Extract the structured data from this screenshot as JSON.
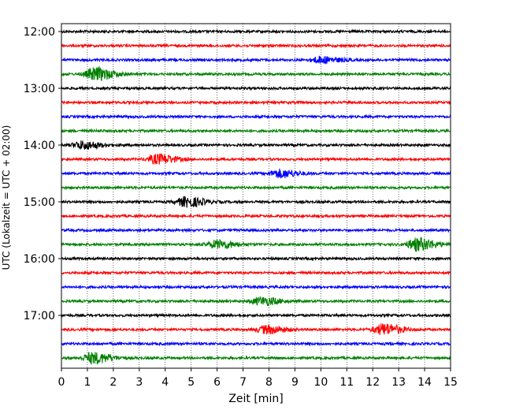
{
  "chart_data": {
    "type": "line",
    "title": "",
    "xlabel": "Zeit  [min]",
    "ylabel": "UTC (Lokalzeit = UTC + 02:00)",
    "xlim": [
      0,
      15
    ],
    "x_ticks": [
      "0",
      "1",
      "2",
      "3",
      "4",
      "5",
      "6",
      "7",
      "8",
      "9",
      "10",
      "11",
      "12",
      "13",
      "14",
      "15"
    ],
    "y_ticks": [
      "12:00",
      "13:00",
      "14:00",
      "15:00",
      "16:00",
      "17:00"
    ],
    "grid": "vertical dotted lines at each minute",
    "trace_interval_min": 15,
    "line_colors_cycle": [
      "#000000",
      "#ff0000",
      "#0000ff",
      "#008000"
    ],
    "traces": [
      {
        "start": "12:00",
        "color": "#000000",
        "events": []
      },
      {
        "start": "12:15",
        "color": "#ff0000",
        "events": []
      },
      {
        "start": "12:30",
        "color": "#0000ff",
        "events": [
          {
            "t": 10.0,
            "amp": 4
          }
        ]
      },
      {
        "start": "12:45",
        "color": "#008000",
        "events": [
          {
            "t": 1.3,
            "amp": 8
          }
        ]
      },
      {
        "start": "13:00",
        "color": "#000000",
        "events": []
      },
      {
        "start": "13:15",
        "color": "#ff0000",
        "events": []
      },
      {
        "start": "13:30",
        "color": "#0000ff",
        "events": []
      },
      {
        "start": "13:45",
        "color": "#008000",
        "events": []
      },
      {
        "start": "14:00",
        "color": "#000000",
        "events": [
          {
            "t": 0.8,
            "amp": 5
          }
        ]
      },
      {
        "start": "14:15",
        "color": "#ff0000",
        "events": [
          {
            "t": 3.7,
            "amp": 6
          }
        ]
      },
      {
        "start": "14:30",
        "color": "#0000ff",
        "events": [
          {
            "t": 8.4,
            "amp": 5
          }
        ]
      },
      {
        "start": "14:45",
        "color": "#008000",
        "events": []
      },
      {
        "start": "15:00",
        "color": "#000000",
        "events": [
          {
            "t": 4.8,
            "amp": 6
          }
        ]
      },
      {
        "start": "15:15",
        "color": "#ff0000",
        "events": []
      },
      {
        "start": "15:30",
        "color": "#0000ff",
        "events": []
      },
      {
        "start": "15:45",
        "color": "#008000",
        "events": [
          {
            "t": 6.0,
            "amp": 5
          },
          {
            "t": 13.7,
            "amp": 8
          }
        ]
      },
      {
        "start": "16:00",
        "color": "#000000",
        "events": []
      },
      {
        "start": "16:15",
        "color": "#ff0000",
        "events": []
      },
      {
        "start": "16:30",
        "color": "#0000ff",
        "events": []
      },
      {
        "start": "16:45",
        "color": "#008000",
        "events": [
          {
            "t": 7.7,
            "amp": 5
          }
        ]
      },
      {
        "start": "17:00",
        "color": "#000000",
        "events": []
      },
      {
        "start": "17:15",
        "color": "#ff0000",
        "events": [
          {
            "t": 7.9,
            "amp": 5
          },
          {
            "t": 12.4,
            "amp": 7
          }
        ]
      },
      {
        "start": "17:30",
        "color": "#0000ff",
        "events": []
      },
      {
        "start": "17:45",
        "color": "#008000",
        "events": [
          {
            "t": 1.2,
            "amp": 7
          }
        ]
      }
    ]
  }
}
